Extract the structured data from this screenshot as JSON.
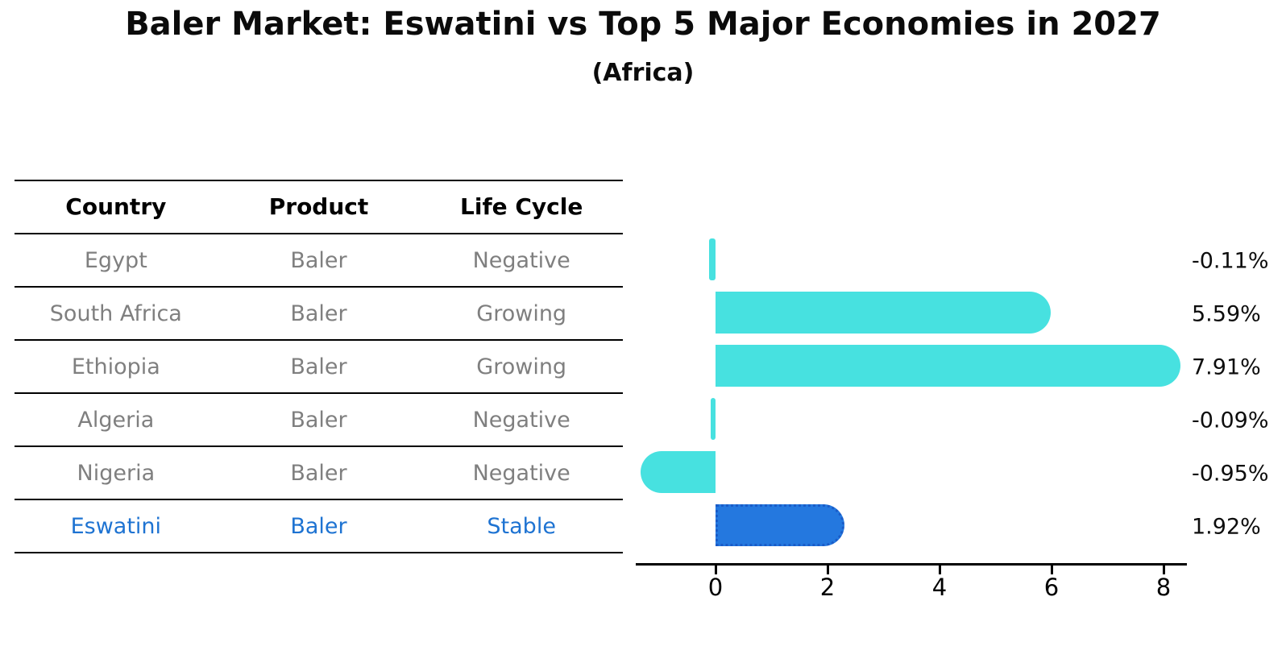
{
  "title": "Baler Market: Eswatini vs Top 5 Major Economies in 2027",
  "subtitle": "(Africa)",
  "table": {
    "headers": [
      "Country",
      "Product",
      "Life Cycle"
    ],
    "rows": [
      {
        "country": "Egypt",
        "product": "Baler",
        "life_cycle": "Negative",
        "highlight": false
      },
      {
        "country": "South Africa",
        "product": "Baler",
        "life_cycle": "Growing",
        "highlight": false
      },
      {
        "country": "Ethiopia",
        "product": "Baler",
        "life_cycle": "Growing",
        "highlight": false
      },
      {
        "country": "Algeria",
        "product": "Baler",
        "life_cycle": "Negative",
        "highlight": false
      },
      {
        "country": "Nigeria",
        "product": "Baler",
        "life_cycle": "Negative",
        "highlight": false
      },
      {
        "country": "Eswatini",
        "product": "Baler",
        "life_cycle": "Stable",
        "highlight": true
      }
    ]
  },
  "chart_data": {
    "type": "bar",
    "orientation": "horizontal",
    "title": "Baler Market: Eswatini vs Top 5 Major Economies in 2027",
    "subtitle": "(Africa)",
    "categories": [
      "Egypt",
      "South Africa",
      "Ethiopia",
      "Algeria",
      "Nigeria",
      "Eswatini"
    ],
    "values": [
      -0.11,
      5.59,
      7.91,
      -0.09,
      -0.95,
      1.92
    ],
    "value_labels": [
      "-0.11%",
      "5.59%",
      "7.91%",
      "-0.09%",
      "-0.95%",
      "1.92%"
    ],
    "x_ticks": [
      0,
      2,
      4,
      6,
      8
    ],
    "x_tick_labels": [
      "0",
      "2",
      "4",
      "6",
      "8"
    ],
    "xlim": [
      -1.4,
      8.4
    ],
    "grid": false,
    "legend": false,
    "highlight_index": 5,
    "colors": {
      "bar_default": "#47E1E0",
      "bar_highlight": "#2478DF",
      "bar_highlight_border": "#1A5CC8",
      "highlight_text": "#1E73D2",
      "row_text": "#7F7F7F",
      "header_text": "#000000",
      "axis": "#000000",
      "value_label_text": "#0D0D0D"
    }
  }
}
